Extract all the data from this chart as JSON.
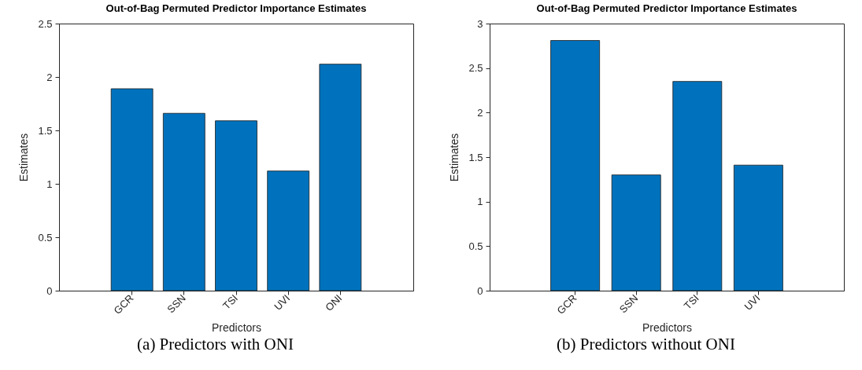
{
  "chart_data": [
    {
      "type": "bar",
      "title": "Out-of-Bag Permuted Predictor Importance Estimates",
      "xlabel": "Predictors",
      "ylabel": "Estimates",
      "categories": [
        "GCR",
        "SSN",
        "TSI",
        "UVI",
        "ONI"
      ],
      "values": [
        1.89,
        1.66,
        1.59,
        1.12,
        2.12
      ],
      "color": "#0072bd",
      "ylim": [
        0,
        2.5
      ],
      "yticks": [
        0,
        0.5,
        1,
        1.5,
        2,
        2.5
      ],
      "annotations": [
        "(a) Predictors with ONI"
      ]
    },
    {
      "type": "bar",
      "title": "Out-of-Bag Permuted Predictor Importance Estimates",
      "xlabel": "Predictors",
      "ylabel": "Estimates",
      "categories": [
        "GCR",
        "SSN",
        "TSI",
        "UVI"
      ],
      "values": [
        2.81,
        1.3,
        2.35,
        1.41
      ],
      "color": "#0072bd",
      "ylim": [
        0,
        3
      ],
      "yticks": [
        0,
        0.5,
        1,
        1.5,
        2,
        2.5,
        3
      ],
      "annotations": [
        "(b) Predictors without ONI"
      ]
    }
  ]
}
